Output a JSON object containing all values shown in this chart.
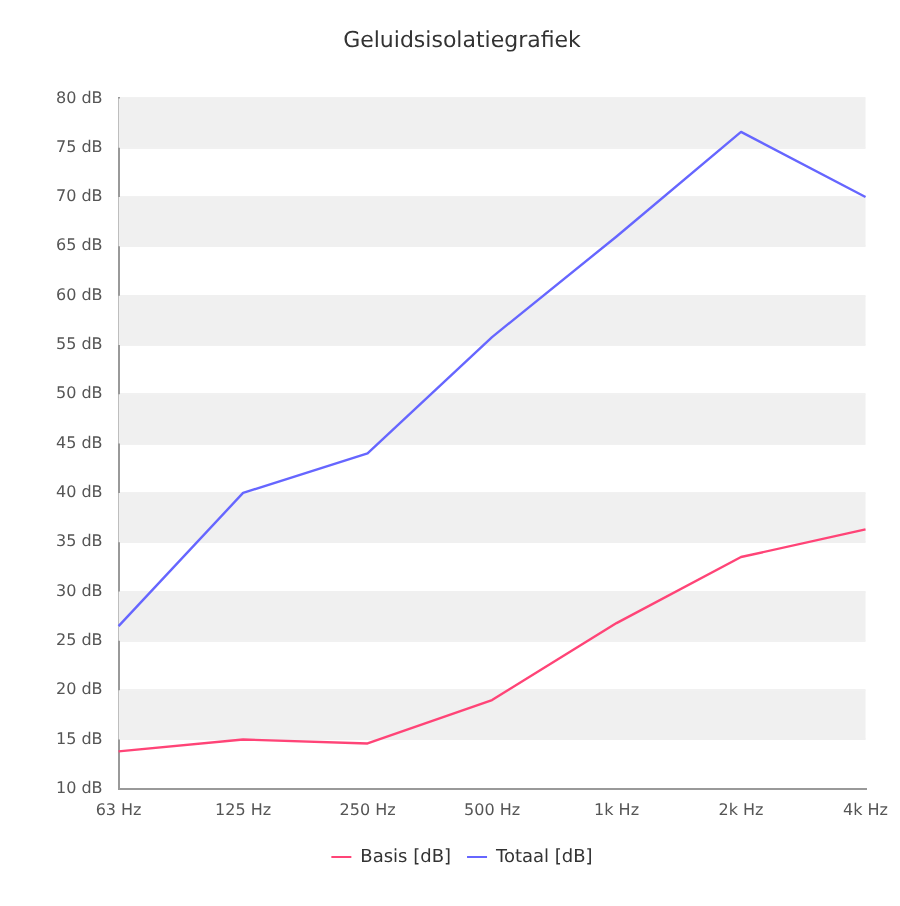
{
  "chart_data": {
    "type": "line",
    "title": "Geluidsisolatiegrafiek",
    "categories": [
      "63 Hz",
      "125 Hz",
      "250 Hz",
      "500 Hz",
      "1k Hz",
      "2k Hz",
      "4k Hz"
    ],
    "series": [
      {
        "name": "Basis [dB]",
        "color": "#ff4477",
        "values": [
          13.8,
          15,
          14.6,
          19,
          26.8,
          33.5,
          36.3
        ]
      },
      {
        "name": "Totaal [dB]",
        "color": "#6666ff",
        "values": [
          26.5,
          40,
          44,
          55.8,
          66,
          76.6,
          70
        ]
      }
    ],
    "ylim": [
      10,
      80
    ],
    "yticks": [
      {
        "value": 10,
        "label": "10 dB"
      },
      {
        "value": 15,
        "label": "15 dB"
      },
      {
        "value": 20,
        "label": "20 dB"
      },
      {
        "value": 25,
        "label": "25 dB"
      },
      {
        "value": 30,
        "label": "30 dB"
      },
      {
        "value": 35,
        "label": "35 dB"
      },
      {
        "value": 40,
        "label": "40 dB"
      },
      {
        "value": 45,
        "label": "45 dB"
      },
      {
        "value": 50,
        "label": "50 dB"
      },
      {
        "value": 55,
        "label": "55 dB"
      },
      {
        "value": 60,
        "label": "60 dB"
      },
      {
        "value": 65,
        "label": "65 dB"
      },
      {
        "value": 70,
        "label": "70 dB"
      },
      {
        "value": 75,
        "label": "75 dB"
      },
      {
        "value": 80,
        "label": "80 dB"
      }
    ],
    "grid": "y",
    "legend": "bottom",
    "marker": "none",
    "line_style": "solid"
  }
}
